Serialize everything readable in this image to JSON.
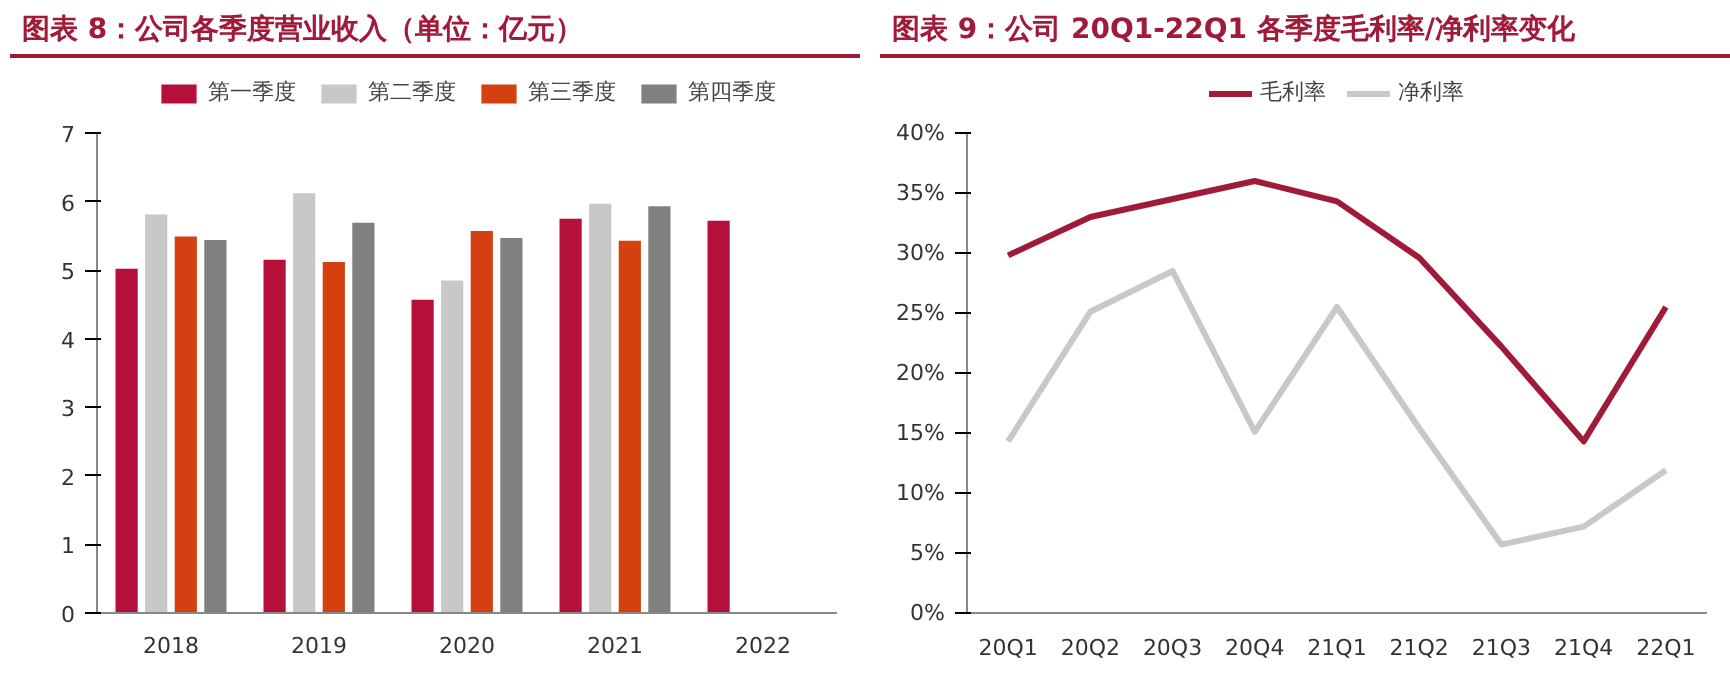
{
  "chart_data": [
    {
      "type": "bar",
      "title": "图表 8：公司各季度营业收入（单位：亿元）",
      "categories": [
        "2018",
        "2019",
        "2020",
        "2021",
        "2022"
      ],
      "series": [
        {
          "name": "第一季度",
          "color": "#b5103a",
          "values": [
            5.02,
            5.15,
            4.57,
            5.75,
            5.72
          ]
        },
        {
          "name": "第二季度",
          "color": "#c8c8c8",
          "values": [
            5.81,
            6.12,
            4.85,
            5.97,
            null
          ]
        },
        {
          "name": "第三季度",
          "color": "#d4400f",
          "values": [
            5.49,
            5.12,
            5.57,
            5.43,
            null
          ]
        },
        {
          "name": "第四季度",
          "color": "#808080",
          "values": [
            5.44,
            5.69,
            5.47,
            5.93,
            null
          ]
        }
      ],
      "ylim": [
        0,
        7
      ],
      "yticks": [
        0,
        1,
        2,
        3,
        4,
        5,
        6,
        7
      ],
      "grid": false,
      "legend": "top"
    },
    {
      "type": "line",
      "title": "图表 9：公司 20Q1-22Q1 各季度毛利率/净利率变化",
      "categories": [
        "20Q1",
        "20Q2",
        "20Q3",
        "20Q4",
        "21Q1",
        "21Q2",
        "21Q3",
        "21Q4",
        "22Q1"
      ],
      "series": [
        {
          "name": "毛利率",
          "color": "#a01a3a",
          "values": [
            29.8,
            33.0,
            34.5,
            36.0,
            34.3,
            29.6,
            22.2,
            14.3,
            25.5
          ]
        },
        {
          "name": "净利率",
          "color": "#c8c8c8",
          "values": [
            14.3,
            25.1,
            28.5,
            15.1,
            25.5,
            15.4,
            5.7,
            7.2,
            11.9
          ]
        }
      ],
      "ylim": [
        0,
        40
      ],
      "yticks": [
        {
          "value": 0,
          "label": "0%"
        },
        {
          "value": 5,
          "label": "5%"
        },
        {
          "value": 10,
          "label": "10%"
        },
        {
          "value": 15,
          "label": "15%"
        },
        {
          "value": 20,
          "label": "20%"
        },
        {
          "value": 25,
          "label": "25%"
        },
        {
          "value": 30,
          "label": "30%"
        },
        {
          "value": 35,
          "label": "35%"
        },
        {
          "value": 40,
          "label": "40%"
        }
      ],
      "grid": false,
      "legend": "top",
      "marker": "none",
      "line_style": "solid"
    }
  ]
}
